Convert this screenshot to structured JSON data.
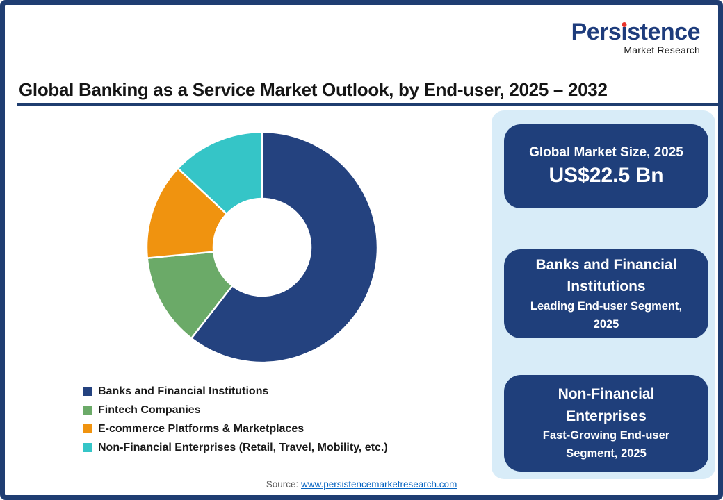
{
  "logo": {
    "text_before_i": "Pers",
    "i_char": "ı",
    "text_after_i": "stence",
    "tagline": "Market Research",
    "dot_color": "#E8332A"
  },
  "title": "Global Banking as a Service Market Outlook, by End-user, 2025 – 2032",
  "chart_data": {
    "type": "pie",
    "subtype": "donut",
    "title": "Global Banking as a Service Market Outlook, by End-user, 2025 – 2032",
    "unit": "percent share of market, estimated from arc angles (no data labels shown)",
    "labels": [
      "Banks and Financial Institutions",
      "Fintech Companies",
      "E-commerce Platforms & Marketplaces",
      "Non-Financial Enterprises (Retail, Travel, Mobility, etc.)"
    ],
    "values": [
      60.5,
      13,
      13.5,
      13
    ],
    "colors": [
      "#24427F",
      "#6BAA68",
      "#F0930F",
      "#35C5C7"
    ],
    "start_angle_deg": 0,
    "direction": "clockwise",
    "donut_hole_ratio": 0.42,
    "legend_position": "bottom-left"
  },
  "panel": {
    "cards": [
      {
        "label": "Global Market Size, 2025",
        "value": "US$22.5 Bn"
      },
      {
        "title": "Banks and Financial Institutions",
        "subtitle": "Leading End-user Segment, 2025"
      },
      {
        "title": "Non-Financial Enterprises",
        "subtitle": "Fast-Growing End-user Segment, 2025"
      }
    ]
  },
  "footer": {
    "source_label": "Source:",
    "link_text": "www.persistencemarketresearch.com"
  },
  "colors": {
    "navy_card": "#1F3F7B",
    "panel_bg": "#D8ECF8",
    "frame_border": "#1F3D72",
    "title_underline": "#1F3D6F",
    "link_blue": "#0563C1",
    "logo_navy": "#1E3C7C"
  }
}
